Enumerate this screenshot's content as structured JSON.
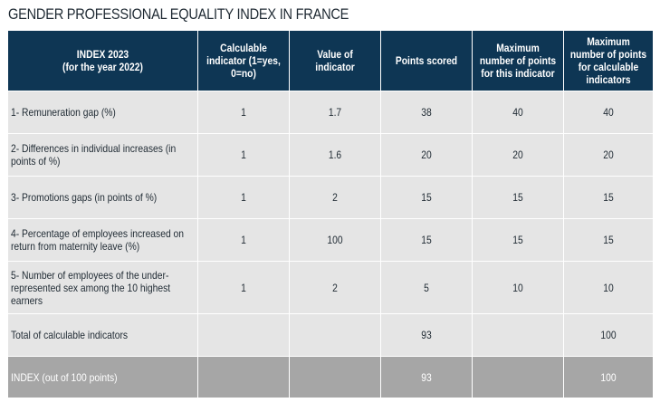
{
  "title": "GENDER PROFESSIONAL EQUALITY INDEX IN FRANCE",
  "headers": [
    "INDEX 2023\n(for the year 2022)",
    "Calculable indicator (1=yes, 0=no)",
    "Value of indicator",
    "Points scored",
    "Maximum number of points for this indicator",
    "Maximum number of points for calculable indicators"
  ],
  "rows": [
    [
      "1- Remuneration gap (%)",
      "1",
      "1.7",
      "38",
      "40",
      "40"
    ],
    [
      "2- Differences in individual increases (in points of %)",
      "1",
      "1.6",
      "20",
      "20",
      "20"
    ],
    [
      "3- Promotions gaps (in points of %)",
      "1",
      "2",
      "15",
      "15",
      "15"
    ],
    [
      "4- Percentage of employees increased on return from maternity leave (%)",
      "1",
      "100",
      "15",
      "15",
      "15"
    ],
    [
      "5- Number of employees of the under-represented sex among the 10 highest earners",
      "1",
      "2",
      "5",
      "10",
      "10"
    ],
    [
      "Total of calculable indicators",
      "",
      "",
      "93",
      "",
      "100"
    ],
    [
      "INDEX (out of 100 points)",
      "",
      "",
      "93",
      "",
      "100"
    ]
  ],
  "colors": {
    "header_bg": "#0e3654",
    "row_bg": "#e5e5e5",
    "index_row_bg": "#a6a6a6"
  }
}
